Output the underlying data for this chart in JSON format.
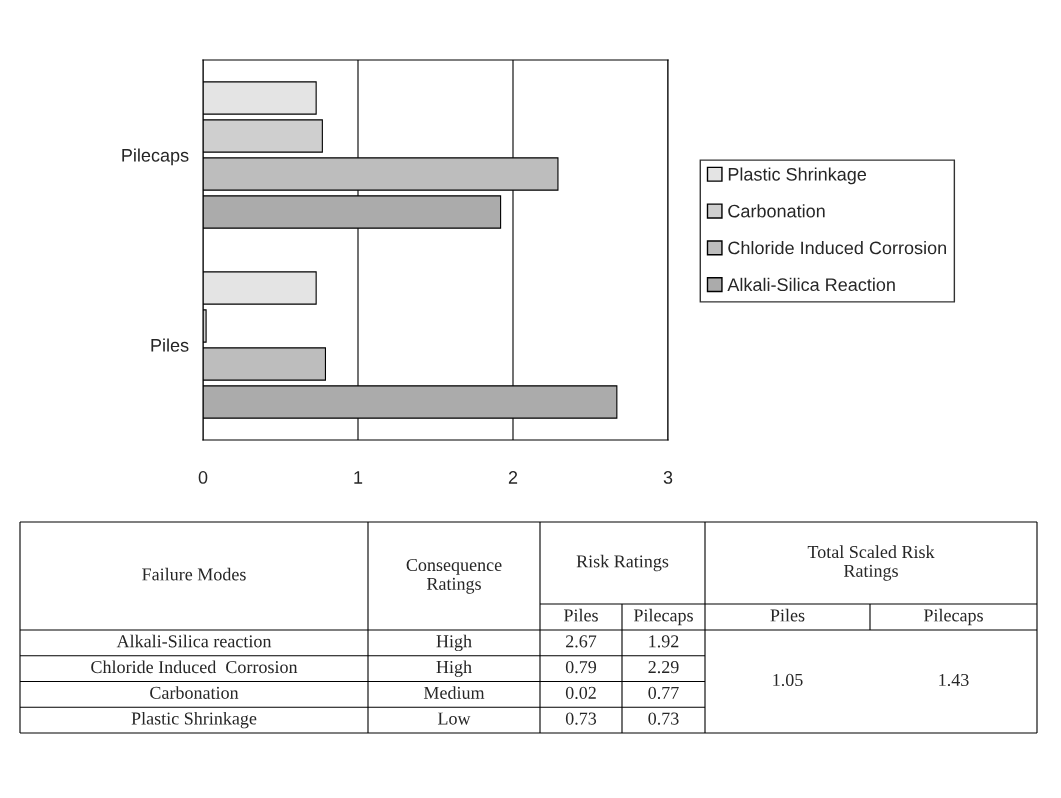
{
  "chart_data": {
    "type": "bar",
    "orientation": "horizontal",
    "categories": [
      "Pilecaps",
      "Piles"
    ],
    "series": [
      {
        "name": "Plastic Shrinkage",
        "color": "#e4e4e4",
        "values": [
          0.73,
          0.73
        ]
      },
      {
        "name": "Carbonation",
        "color": "#cfcfcf",
        "values": [
          0.77,
          0.02
        ]
      },
      {
        "name": "Chloride Induced Corrosion",
        "color": "#bdbdbd",
        "values": [
          2.29,
          0.79
        ]
      },
      {
        "name": "Alkali-Silica Reaction",
        "color": "#ababab",
        "values": [
          1.92,
          2.67
        ]
      }
    ],
    "xlim": [
      0,
      3
    ],
    "xticks": [
      0,
      1,
      2,
      3
    ],
    "grid": "x",
    "legend": "right",
    "annotations": [
      "Failure Modes",
      "Consequence Ratings",
      "Risk Ratings",
      "Total Scaled Risk Ratings",
      "Alkali-Silica reaction",
      "Chloride Induced  Corrosion",
      "Carbonation",
      "Plastic Shrinkage",
      "High",
      "High",
      "Medium",
      "Low",
      "1.05",
      "1.43",
      "2.67",
      "1.92",
      "0.79",
      "2.29",
      "0.02",
      "0.77",
      "0.73",
      "0.73"
    ]
  }
}
